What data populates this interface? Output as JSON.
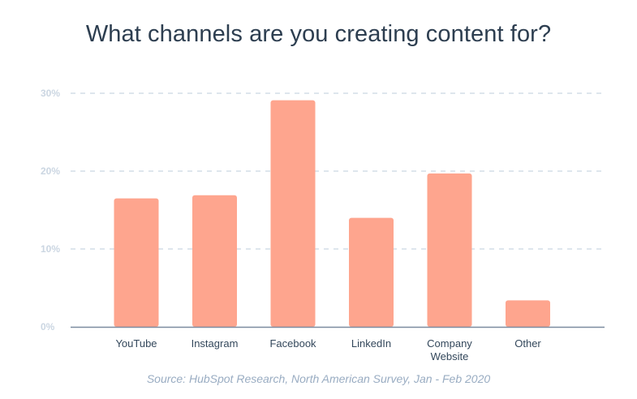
{
  "chart_data": {
    "type": "bar",
    "title": "What channels are you creating content for?",
    "categories": [
      "YouTube",
      "Instagram",
      "Facebook",
      "LinkedIn",
      "Company Website",
      "Other"
    ],
    "category_lines": [
      [
        "YouTube"
      ],
      [
        "Instagram"
      ],
      [
        "Facebook"
      ],
      [
        "LinkedIn"
      ],
      [
        "Company",
        "Website"
      ],
      [
        "Other"
      ]
    ],
    "values": [
      16.5,
      16.9,
      29.1,
      14.0,
      19.7,
      3.4
    ],
    "xlabel": "",
    "ylabel": "",
    "ylim": [
      0,
      30
    ],
    "yticks": [
      0,
      10,
      20,
      30
    ],
    "ytick_labels": [
      "0%",
      "10%",
      "20%",
      "30%"
    ],
    "grid": true,
    "legend": "none",
    "bar_color": "#fea58e",
    "source": "Source: HubSpot Research, North American Survey, Jan - Feb 2020"
  }
}
